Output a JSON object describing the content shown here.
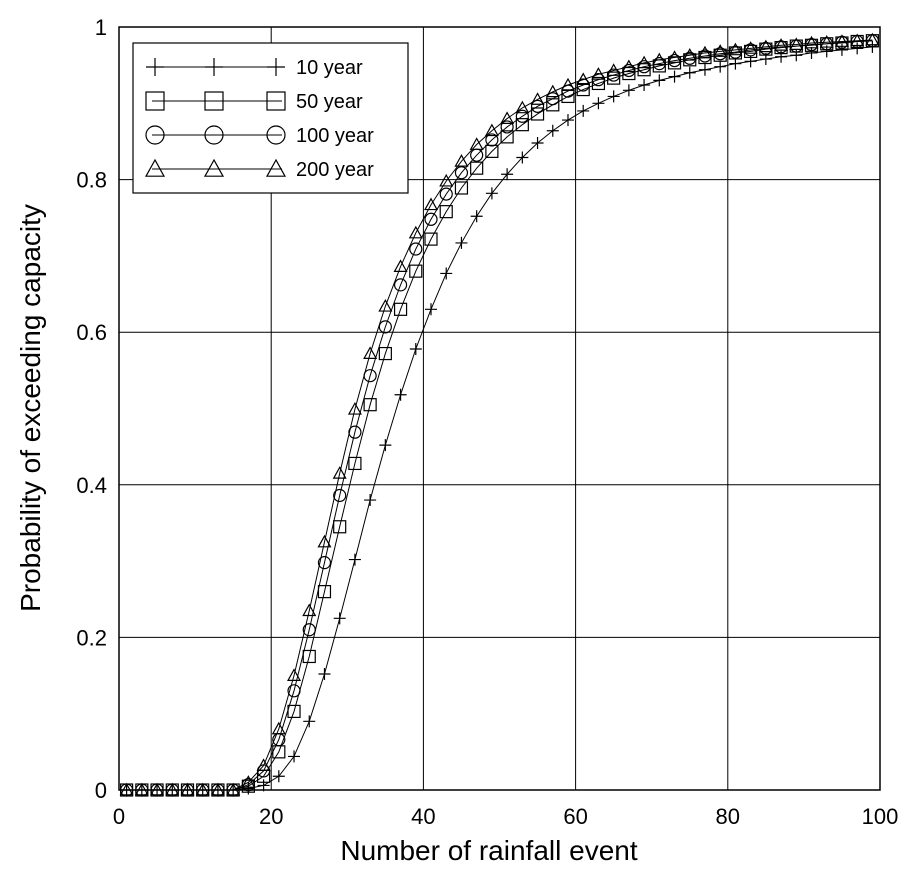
{
  "chart_data": {
    "type": "line",
    "title": "",
    "xlabel": "Number of rainfall event",
    "ylabel": "Probability of exceeding capacity",
    "xlim": [
      0,
      100
    ],
    "ylim": [
      0,
      1
    ],
    "xticks": [
      0,
      20,
      40,
      60,
      80,
      100
    ],
    "yticks": [
      0,
      0.2,
      0.4,
      0.6,
      0.8,
      1
    ],
    "xtick_labels": [
      "0",
      "20",
      "40",
      "60",
      "80",
      "100"
    ],
    "ytick_labels": [
      "0",
      "0.2",
      "0.4",
      "0.6",
      "0.8",
      "1"
    ],
    "grid": true,
    "legend_position": "top-left",
    "series": [
      {
        "name": "10 year",
        "marker": "plus",
        "x": [
          1,
          3,
          5,
          7,
          9,
          11,
          13,
          15,
          17,
          19,
          21,
          23,
          25,
          27,
          29,
          31,
          33,
          35,
          37,
          39,
          41,
          43,
          45,
          47,
          49,
          51,
          53,
          55,
          57,
          59,
          61,
          63,
          65,
          67,
          69,
          71,
          73,
          75,
          77,
          79,
          81,
          83,
          85,
          87,
          89,
          91,
          93,
          95,
          97,
          99
        ],
        "y": [
          0,
          0,
          0,
          0,
          0,
          0,
          0,
          0,
          0.002,
          0.006,
          0.018,
          0.044,
          0.09,
          0.152,
          0.225,
          0.302,
          0.38,
          0.452,
          0.518,
          0.578,
          0.63,
          0.677,
          0.717,
          0.752,
          0.782,
          0.807,
          0.829,
          0.848,
          0.864,
          0.878,
          0.89,
          0.9,
          0.909,
          0.917,
          0.924,
          0.93,
          0.935,
          0.94,
          0.944,
          0.948,
          0.952,
          0.955,
          0.958,
          0.961,
          0.963,
          0.966,
          0.968,
          0.97,
          0.972,
          0.974
        ]
      },
      {
        "name": "50 year",
        "marker": "square",
        "x": [
          1,
          3,
          5,
          7,
          9,
          11,
          13,
          15,
          17,
          19,
          21,
          23,
          25,
          27,
          29,
          31,
          33,
          35,
          37,
          39,
          41,
          43,
          45,
          47,
          49,
          51,
          53,
          55,
          57,
          59,
          61,
          63,
          65,
          67,
          69,
          71,
          73,
          75,
          77,
          79,
          81,
          83,
          85,
          87,
          89,
          91,
          93,
          95,
          97,
          99
        ],
        "y": [
          0,
          0,
          0,
          0,
          0,
          0,
          0,
          0,
          0.005,
          0.018,
          0.05,
          0.103,
          0.175,
          0.26,
          0.345,
          0.428,
          0.505,
          0.572,
          0.63,
          0.68,
          0.722,
          0.758,
          0.789,
          0.815,
          0.837,
          0.856,
          0.872,
          0.886,
          0.898,
          0.909,
          0.918,
          0.926,
          0.933,
          0.939,
          0.944,
          0.949,
          0.953,
          0.957,
          0.96,
          0.963,
          0.966,
          0.968,
          0.971,
          0.973,
          0.975,
          0.976,
          0.978,
          0.979,
          0.981,
          0.982
        ]
      },
      {
        "name": "100 year",
        "marker": "circle",
        "x": [
          1,
          3,
          5,
          7,
          9,
          11,
          13,
          15,
          17,
          19,
          21,
          23,
          25,
          27,
          29,
          31,
          33,
          35,
          37,
          39,
          41,
          43,
          45,
          47,
          49,
          51,
          53,
          55,
          57,
          59,
          61,
          63,
          65,
          67,
          69,
          71,
          73,
          75,
          77,
          79,
          81,
          83,
          85,
          87,
          89,
          91,
          93,
          95,
          97,
          99
        ],
        "y": [
          0,
          0,
          0,
          0,
          0,
          0,
          0,
          0,
          0.007,
          0.025,
          0.066,
          0.13,
          0.21,
          0.298,
          0.386,
          0.469,
          0.543,
          0.607,
          0.662,
          0.709,
          0.748,
          0.781,
          0.809,
          0.832,
          0.852,
          0.869,
          0.883,
          0.896,
          0.906,
          0.916,
          0.924,
          0.931,
          0.937,
          0.943,
          0.948,
          0.952,
          0.956,
          0.959,
          0.962,
          0.965,
          0.967,
          0.97,
          0.972,
          0.974,
          0.975,
          0.977,
          0.978,
          0.98,
          0.981,
          0.982
        ]
      },
      {
        "name": "200 year",
        "marker": "triangle",
        "x": [
          1,
          3,
          5,
          7,
          9,
          11,
          13,
          15,
          17,
          19,
          21,
          23,
          25,
          27,
          29,
          31,
          33,
          35,
          37,
          39,
          41,
          43,
          45,
          47,
          49,
          51,
          53,
          55,
          57,
          59,
          61,
          63,
          65,
          67,
          69,
          71,
          73,
          75,
          77,
          79,
          81,
          83,
          85,
          87,
          89,
          91,
          93,
          95,
          97,
          99
        ],
        "y": [
          0,
          0,
          0,
          0,
          0,
          0,
          0,
          0,
          0.01,
          0.032,
          0.08,
          0.15,
          0.235,
          0.325,
          0.415,
          0.499,
          0.572,
          0.634,
          0.686,
          0.73,
          0.767,
          0.798,
          0.824,
          0.846,
          0.864,
          0.88,
          0.894,
          0.905,
          0.915,
          0.924,
          0.931,
          0.938,
          0.943,
          0.948,
          0.953,
          0.957,
          0.96,
          0.963,
          0.966,
          0.968,
          0.97,
          0.972,
          0.974,
          0.976,
          0.977,
          0.979,
          0.98,
          0.981,
          0.982,
          0.983
        ]
      }
    ]
  }
}
